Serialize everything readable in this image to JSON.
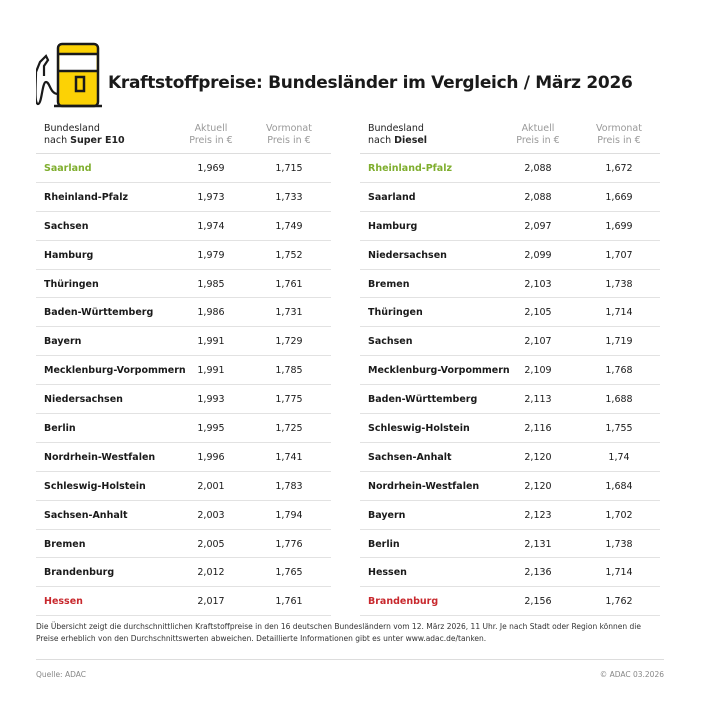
{
  "title": "Kraftstoffpreise: Bundesländer im Vergleich / März 2026",
  "colors": {
    "logo_yellow": "#fcd205",
    "cheapest": "#7fae2e",
    "most_expensive": "#c8282d"
  },
  "icon": "fuel-pump-icon",
  "tables": [
    {
      "header": {
        "col1_line1": "Bundesland",
        "col1_prefix": "nach ",
        "col1_fuel": "Super E10",
        "col2_line1": "Aktuell",
        "col2_line2": "Preis in €",
        "col3_line1": "Vormonat",
        "col3_line2": "Preis in €"
      },
      "rows": [
        [
          "Saarland",
          "1,969",
          "1,715"
        ],
        [
          "Rheinland-Pfalz",
          "1,973",
          "1,733"
        ],
        [
          "Sachsen",
          "1,974",
          "1,749"
        ],
        [
          "Hamburg",
          "1,979",
          "1,752"
        ],
        [
          "Thüringen",
          "1,985",
          "1,761"
        ],
        [
          "Baden-Württemberg",
          "1,986",
          "1,731"
        ],
        [
          "Bayern",
          "1,991",
          "1,729"
        ],
        [
          "Mecklenburg-Vorpommern",
          "1,991",
          "1,785"
        ],
        [
          "Niedersachsen",
          "1,993",
          "1,775"
        ],
        [
          "Berlin",
          "1,995",
          "1,725"
        ],
        [
          "Nordrhein-Westfalen",
          "1,996",
          "1,741"
        ],
        [
          "Schleswig-Holstein",
          "2,001",
          "1,783"
        ],
        [
          "Sachsen-Anhalt",
          "2,003",
          "1,794"
        ],
        [
          "Bremen",
          "2,005",
          "1,776"
        ],
        [
          "Brandenburg",
          "2,012",
          "1,765"
        ],
        [
          "Hessen",
          "2,017",
          "1,761"
        ]
      ]
    },
    {
      "header": {
        "col1_line1": "Bundesland",
        "col1_prefix": "nach ",
        "col1_fuel": "Diesel",
        "col2_line1": "Aktuell",
        "col2_line2": "Preis in €",
        "col3_line1": "Vormonat",
        "col3_line2": "Preis in €"
      },
      "rows": [
        [
          "Rheinland-Pfalz",
          "2,088",
          "1,672"
        ],
        [
          "Saarland",
          "2,088",
          "1,669"
        ],
        [
          "Hamburg",
          "2,097",
          "1,699"
        ],
        [
          "Niedersachsen",
          "2,099",
          "1,707"
        ],
        [
          "Bremen",
          "2,103",
          "1,738"
        ],
        [
          "Thüringen",
          "2,105",
          "1,714"
        ],
        [
          "Sachsen",
          "2,107",
          "1,719"
        ],
        [
          "Mecklenburg-Vorpommern",
          "2,109",
          "1,768"
        ],
        [
          "Baden-Württemberg",
          "2,113",
          "1,688"
        ],
        [
          "Schleswig-Holstein",
          "2,116",
          "1,755"
        ],
        [
          "Sachsen-Anhalt",
          "2,120",
          "1,74"
        ],
        [
          "Nordrhein-Westfalen",
          "2,120",
          "1,684"
        ],
        [
          "Bayern",
          "2,123",
          "1,702"
        ],
        [
          "Berlin",
          "2,131",
          "1,738"
        ],
        [
          "Hessen",
          "2,136",
          "1,714"
        ],
        [
          "Brandenburg",
          "2,156",
          "1,762"
        ]
      ]
    }
  ],
  "note": "Die Übersicht zeigt die durchschnittlichen Kraftstoffpreise in den 16 deutschen Bundesländern vom 12. März 2026, 11 Uhr. Je nach Stadt oder Region können die Preise erheblich von den Durchschnittswerten abweichen. Detaillierte Informationen gibt es unter www.adac.de/tanken.",
  "source": "Quelle: ADAC",
  "copyright": "© ADAC 03.2026"
}
